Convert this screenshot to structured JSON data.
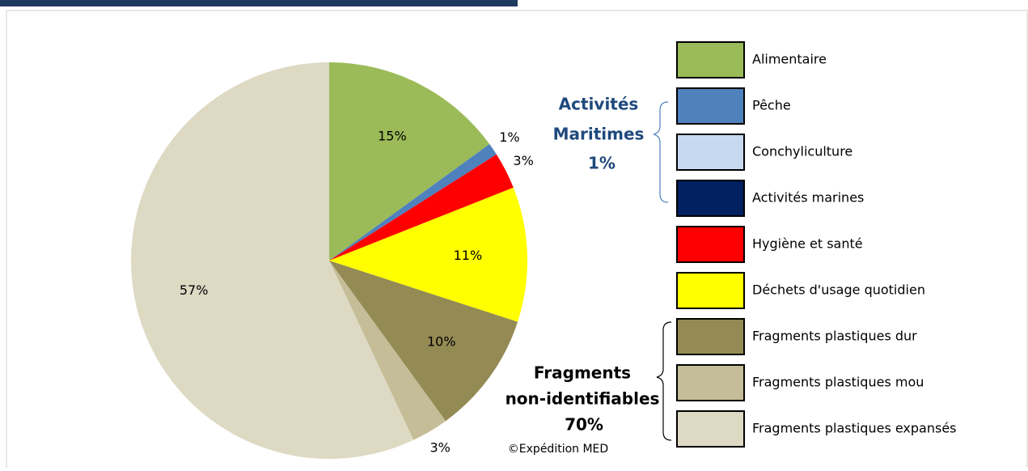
{
  "chart_data": {
    "type": "pie",
    "categories": [
      "Alimentaire",
      "Pêche",
      "Conchyliculture",
      "Activités marines",
      "Hygiène et santé",
      "Déchets d'usage quotidien",
      "Fragments plastiques dur",
      "Fragments plastiques mou",
      "Fragments plastiques expansés"
    ],
    "values": [
      15,
      1,
      0,
      0,
      3,
      11,
      10,
      3,
      57
    ],
    "value_labels": [
      "15%",
      "1%",
      null,
      null,
      "3%",
      "11%",
      "10%",
      "3%",
      "57%"
    ],
    "colors": [
      "#9bbb59",
      "#4f81bd",
      "#c6d9f1",
      "#002060",
      "#ff0000",
      "#ffff00",
      "#948a54",
      "#c4bd97",
      "#ddd9c3"
    ],
    "annotations": [
      {
        "lines": [
          "Activités",
          "Maritimes",
          "1%"
        ]
      },
      {
        "lines": [
          "Fragments",
          "non-identifiables",
          "70%"
        ]
      },
      {
        "lines": [
          "©Expédition MED"
        ]
      }
    ]
  }
}
